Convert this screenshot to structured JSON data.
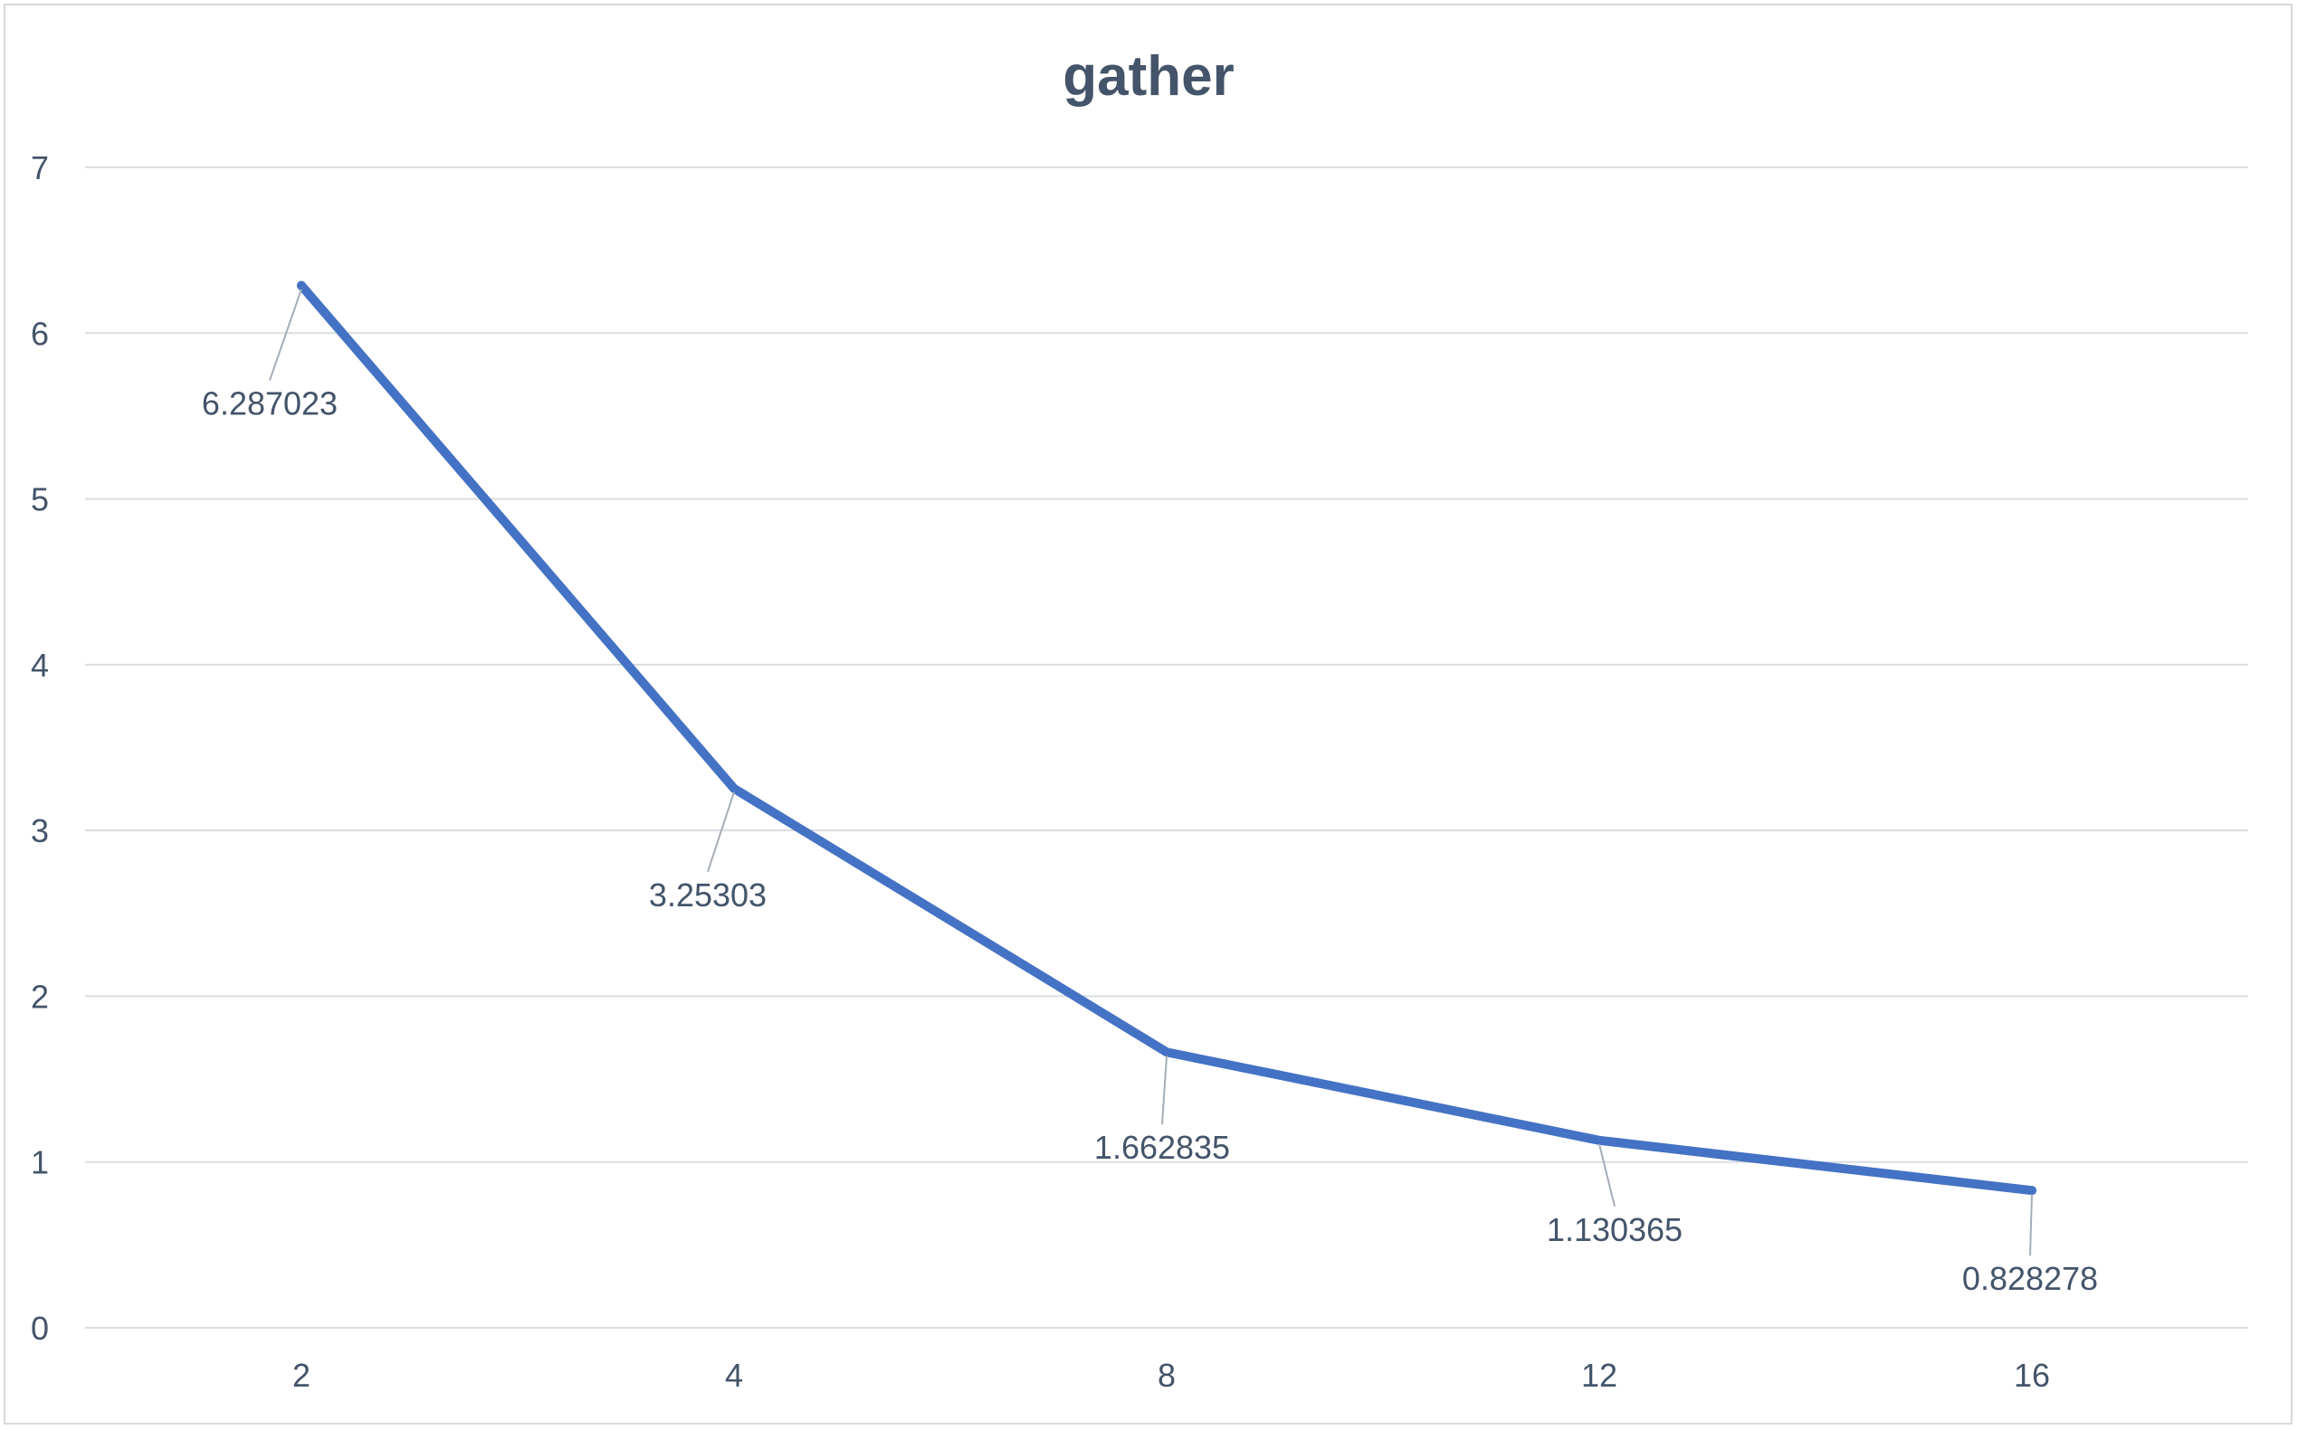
{
  "chart_data": {
    "type": "line",
    "title": "gather",
    "xlabel": "",
    "ylabel": "",
    "categories": [
      "2",
      "4",
      "8",
      "12",
      "16"
    ],
    "series": [
      {
        "values": [
          6.287023,
          3.25303,
          1.662835,
          1.130365,
          0.828278
        ],
        "data_labels": [
          "6.287023",
          "3.25303",
          "1.662835",
          "1.130365",
          "0.828278"
        ],
        "color": "#4472c4"
      }
    ],
    "ylim": [
      0,
      7
    ],
    "yticks": [
      "0",
      "1",
      "2",
      "3",
      "4",
      "5",
      "6",
      "7"
    ],
    "grid": true,
    "legend": "none",
    "gridline_color": "#d9dde3",
    "text_color": "#44546a",
    "leader_line_color": "#a5adb8"
  }
}
